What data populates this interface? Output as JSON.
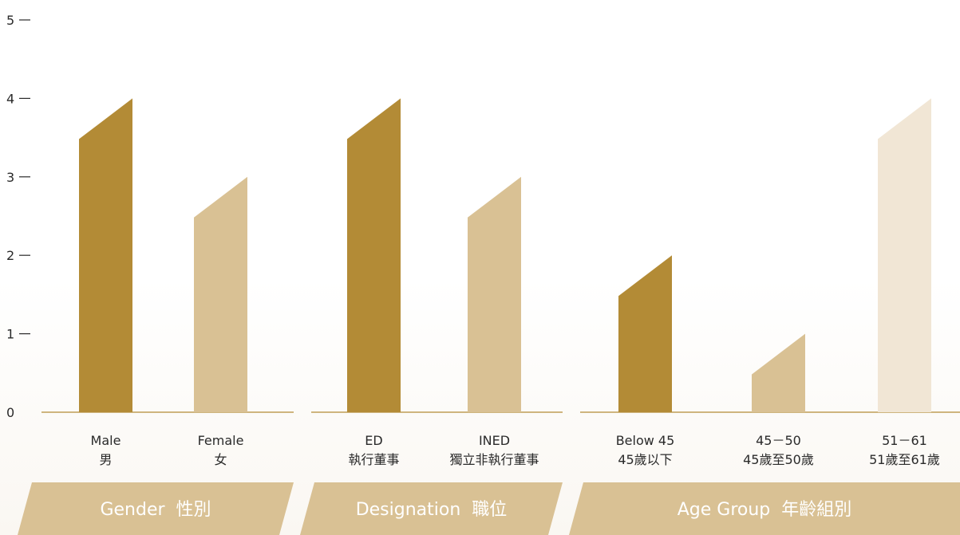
{
  "chart_data": {
    "type": "bar",
    "ylim": [
      0,
      5
    ],
    "yticks": [
      "0",
      "1",
      "2",
      "3",
      "4",
      "5"
    ],
    "groups": [
      {
        "title": "Gender  性別",
        "bars": [
          {
            "label1": "Male",
            "label2": "男",
            "value": 4,
            "color": "#b38b36"
          },
          {
            "label1": "Female",
            "label2": "女",
            "value": 3,
            "color": "#d9c194"
          }
        ]
      },
      {
        "title": "Designation  職位",
        "bars": [
          {
            "label1": "ED",
            "label2": "執行董事",
            "value": 4,
            "color": "#b38b36"
          },
          {
            "label1": "INED",
            "label2": "獨立非執行董事",
            "value": 3,
            "color": "#d9c194"
          }
        ]
      },
      {
        "title": "Age Group  年齡組別",
        "bars": [
          {
            "label1": "Below 45",
            "label2": "45歲以下",
            "value": 2,
            "color": "#b38b36"
          },
          {
            "label1": "45－50",
            "label2": "45歲至50歲",
            "value": 1,
            "color": "#d9c194"
          },
          {
            "label1": "51－61",
            "label2": "51歲至61歲",
            "value": 4,
            "color": "#f1e6d5"
          }
        ]
      }
    ],
    "colors": {
      "axis": "#b38b36",
      "banner": "#d9c194",
      "tick_mark": "#2a2a2a"
    }
  }
}
